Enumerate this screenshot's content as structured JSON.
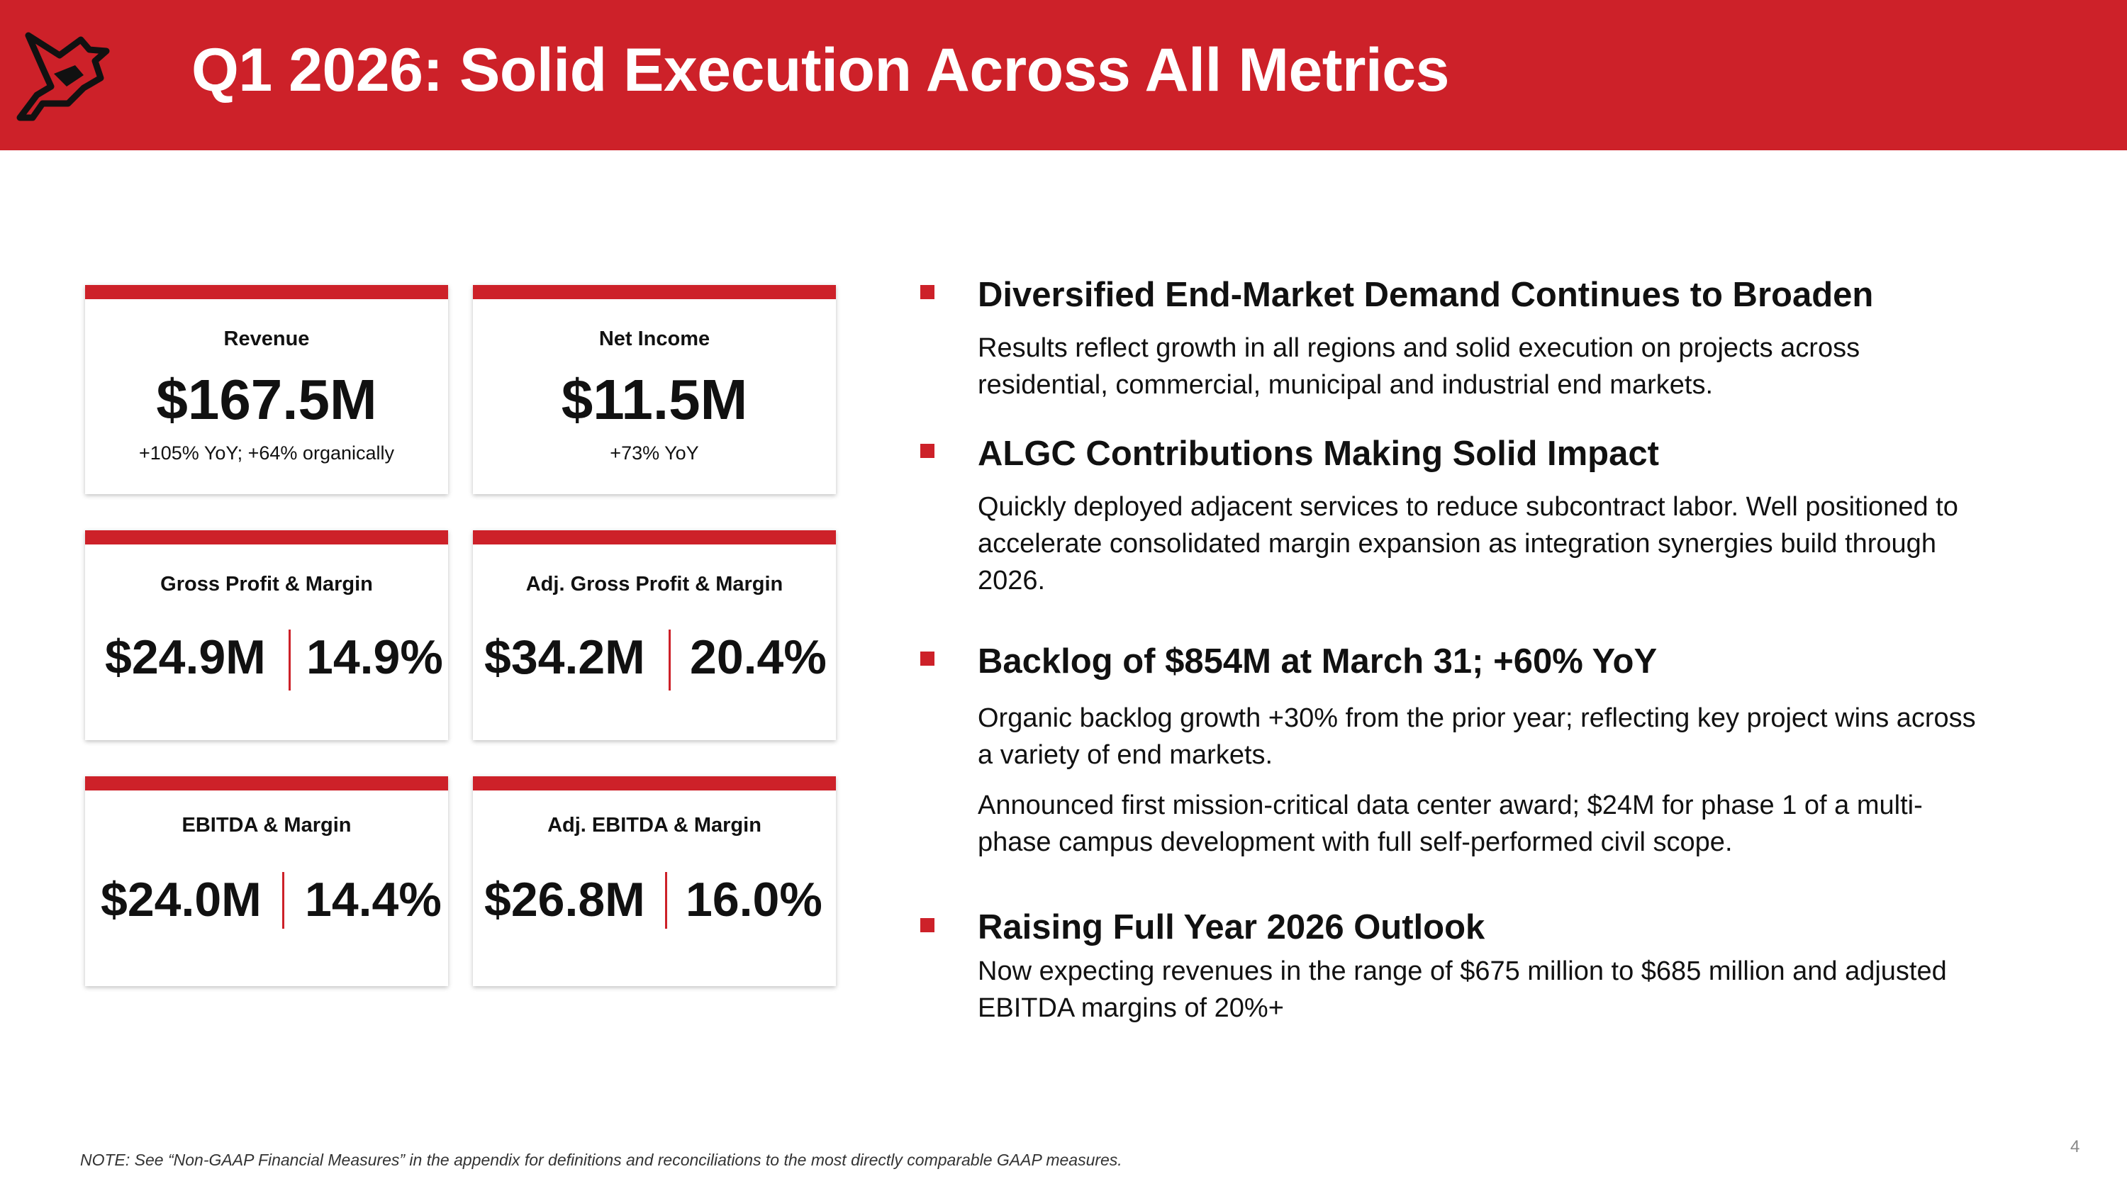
{
  "header": {
    "title": "Q1 2026: Solid Execution Across All Metrics"
  },
  "cards": {
    "revenue": {
      "label": "Revenue",
      "value": "$167.5M",
      "sub": "+105% YoY; +64% organically"
    },
    "net_income": {
      "label": "Net Income",
      "value": "$11.5M",
      "sub": "+73% YoY"
    },
    "gross_profit": {
      "label": "Gross Profit & Margin",
      "value": "$24.9M",
      "margin": "14.9%"
    },
    "adj_gross_profit": {
      "label": "Adj. Gross Profit & Margin",
      "value": "$34.2M",
      "margin": "20.4%"
    },
    "ebitda": {
      "label": "EBITDA & Margin",
      "value": "$24.0M",
      "margin": "14.4%"
    },
    "adj_ebitda": {
      "label": "Adj. EBITDA & Margin",
      "value": "$26.8M",
      "margin": "16.0%"
    }
  },
  "bullets": [
    {
      "heading": "Diversified End-Market Demand Continues to Broaden",
      "paragraphs": [
        "Results reflect growth in all regions and solid execution on projects across residential, commercial, municipal and industrial end markets."
      ]
    },
    {
      "heading": "ALGC Contributions Making Solid Impact",
      "paragraphs": [
        "Quickly deployed adjacent services to reduce subcontract labor. Well positioned to accelerate consolidated margin expansion as integration synergies build through 2026."
      ]
    },
    {
      "heading": "Backlog of $854M at March 31; +60% YoY",
      "paragraphs": [
        "Organic backlog growth +30% from the prior year; reflecting key project wins across a variety of end markets.",
        "Announced first mission-critical data center award; $24M for phase 1 of a multi-phase campus development with full self-performed civil scope."
      ]
    },
    {
      "heading": "Raising Full Year 2026 Outlook",
      "paragraphs": [
        "Now expecting revenues in the range of $675 million to $685 million and adjusted EBITDA margins of 20%+"
      ]
    }
  ],
  "footer": {
    "note": "NOTE: See “Non-GAAP Financial Measures” in the appendix for definitions and reconciliations to the most directly comparable GAAP measures.",
    "page_number": "4"
  },
  "colors": {
    "brand_red": "#cd2129",
    "text": "#111111"
  },
  "icons": {
    "logo": "cardinal-bird-logo",
    "bullet": "red-square-bullet"
  }
}
